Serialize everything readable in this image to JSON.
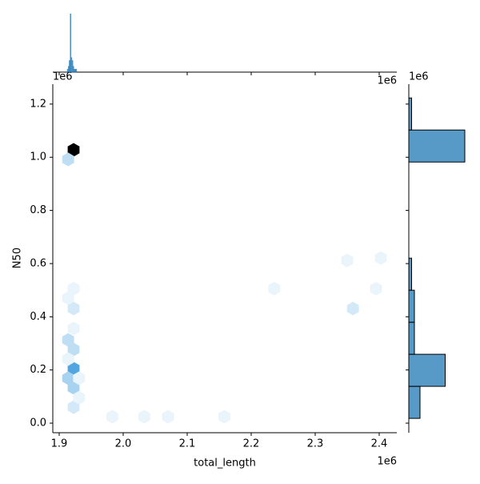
{
  "chart_data": {
    "type": "hexbin",
    "xlabel": "total_length",
    "ylabel": "N50",
    "x_offset_label": "1e6",
    "y_offset_label": "1e6",
    "marginal_x_offset_label": "1e6",
    "marginal_y_offset_label": "1e6",
    "color": "#1f77b4",
    "xlim": [
      1.89,
      2.4275
    ],
    "ylim": [
      -0.036,
      1.275
    ],
    "xticks": [
      1.9,
      {
        "value": 2.0,
        "label": "2.0"
      },
      2.1,
      2.2,
      2.3,
      2.4
    ],
    "yticks": [
      {
        "value": 0,
        "label": "0.0"
      },
      0.2,
      0.4,
      0.6,
      0.8,
      {
        "value": 1,
        "label": "1.0"
      },
      1.2
    ],
    "hexbins": {
      "x": [
        1.9225,
        1.914,
        1.9225,
        1.914,
        1.9225,
        1.931,
        1.9225,
        1.931,
        1.914,
        1.9225,
        1.9225,
        1.9225,
        1.9225,
        2.359,
        2.35,
        2.4025,
        2.395,
        2.236,
        1.914,
        1.914,
        1.983,
        2.033,
        2.07,
        2.158
      ],
      "y": [
        1.028,
        0.992,
        0.205,
        0.169,
        0.133,
        0.169,
        0.06,
        0.096,
        0.313,
        0.277,
        0.431,
        0.356,
        0.506,
        0.431,
        0.612,
        0.621,
        0.506,
        0.506,
        0.241,
        0.47,
        0.024,
        0.024,
        0.024,
        0.024
      ],
      "counts": [
        20,
        3,
        8,
        4,
        4,
        1,
        2,
        1,
        3,
        3,
        2,
        1,
        1,
        2,
        1,
        1,
        1,
        1,
        1,
        1,
        1,
        1,
        1,
        1
      ]
    },
    "top_hist": {
      "bins": [
        1.9125,
        1.914,
        1.9155,
        1.917,
        1.9185,
        1.92,
        1.9215,
        1.923,
        1.9245,
        1.926,
        1.9275
      ],
      "counts": [
        1,
        2,
        4,
        20,
        5,
        4,
        2,
        1,
        1,
        1
      ],
      "ylim": [
        0,
        22
      ]
    },
    "right_hist": {
      "bins": [
        0.018,
        0.1385,
        0.259,
        0.3795,
        0.5,
        0.6205,
        0.741,
        0.8615,
        0.982,
        1.1025,
        1.223
      ],
      "counts": [
        4,
        13,
        2,
        2,
        1,
        0,
        0,
        0,
        20,
        1
      ],
      "xlim": [
        0,
        22
      ]
    }
  }
}
